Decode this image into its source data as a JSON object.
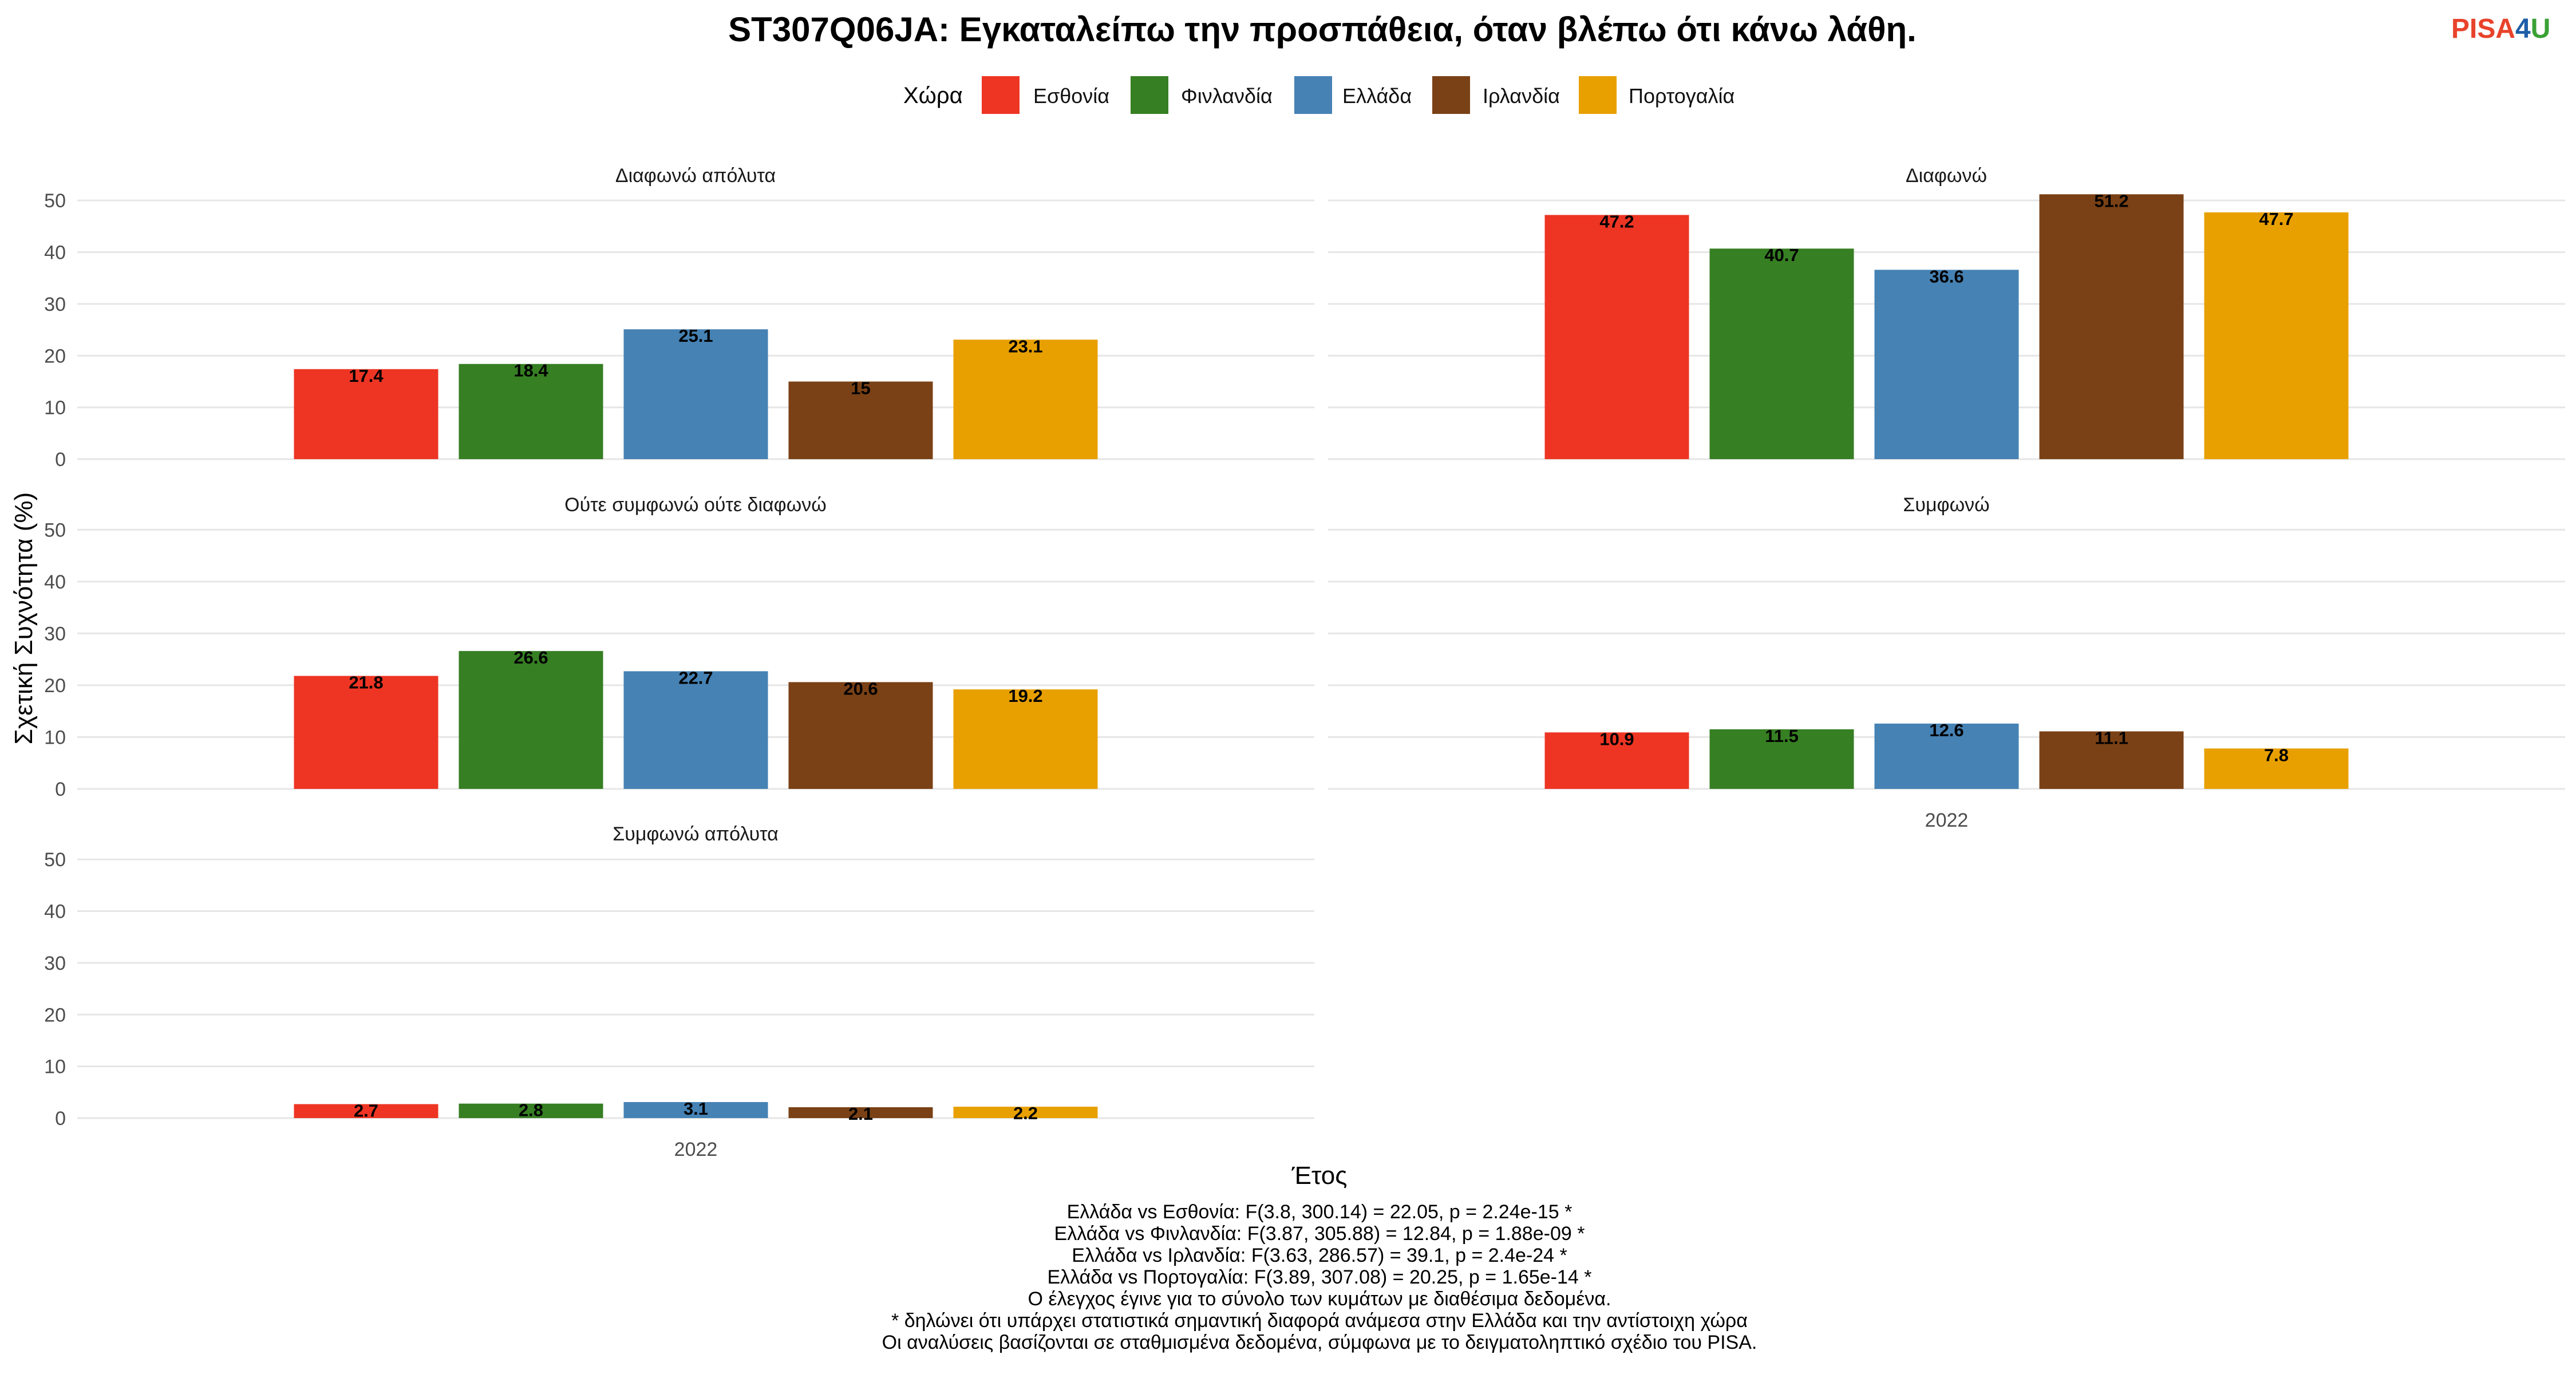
{
  "title": "ST307Q06JA: Εγκαταλείπω την προσπάθεια, όταν βλέπω ότι κάνω λάθη.",
  "logo": {
    "part1": "PISA",
    "part2": "4",
    "part3": "U",
    "color1": "#e8432b",
    "color2": "#1f5fa8",
    "color3": "#3aa135"
  },
  "chart_data": {
    "type": "bar",
    "legend_title": "Χώρα",
    "legend_position": "top",
    "countries": [
      "Εσθονία",
      "Φινλανδία",
      "Ελλάδα",
      "Ιρλανδία",
      "Πορτογαλία"
    ],
    "colors": [
      "#ee3524",
      "#367f23",
      "#4682b4",
      "#7a4116",
      "#e8a000"
    ],
    "categories": [
      "2022"
    ],
    "xlabel": "Έτος",
    "ylabel": "Σχετική Συχνότητα (%)",
    "ylim": [
      0,
      55
    ],
    "yticks": [
      0,
      10,
      20,
      30,
      40,
      50
    ],
    "grid": true,
    "facets": [
      {
        "label": "Διαφωνώ απόλυτα",
        "values": [
          17.4,
          18.4,
          25.1,
          15,
          23.1
        ]
      },
      {
        "label": "Διαφωνώ",
        "values": [
          47.2,
          40.7,
          36.6,
          51.2,
          47.7
        ]
      },
      {
        "label": "Ούτε συμφωνώ ούτε διαφωνώ",
        "values": [
          21.8,
          26.6,
          22.7,
          20.6,
          19.2
        ]
      },
      {
        "label": "Συμφωνώ",
        "values": [
          10.9,
          11.5,
          12.6,
          11.1,
          7.8
        ]
      },
      {
        "label": "Συμφωνώ απόλυτα",
        "values": [
          2.7,
          2.8,
          3.1,
          2.1,
          2.2
        ]
      }
    ]
  },
  "notes": [
    "Ελλάδα vs Εσθονία: F(3.8, 300.14) = 22.05, p = 2.24e-15 *",
    "Ελλάδα vs Φινλανδία: F(3.87, 305.88) = 12.84, p = 1.88e-09 *",
    "Ελλάδα vs Ιρλανδία: F(3.63, 286.57) = 39.1, p = 2.4e-24 *",
    "Ελλάδα vs Πορτογαλία: F(3.89, 307.08) = 20.25, p = 1.65e-14 *",
    "Ο έλεγχος έγινε για το σύνολο των κυμάτων με διαθέσιμα δεδομένα.",
    "* δηλώνει ότι υπάρχει στατιστικά σημαντική διαφορά ανάμεσα στην Ελλάδα και την αντίστοιχη χώρα",
    "Οι αναλύσεις βασίζονται σε σταθμισμένα δεδομένα, σύμφωνα με το δειγματοληπτικό σχέδιο του PISA."
  ]
}
